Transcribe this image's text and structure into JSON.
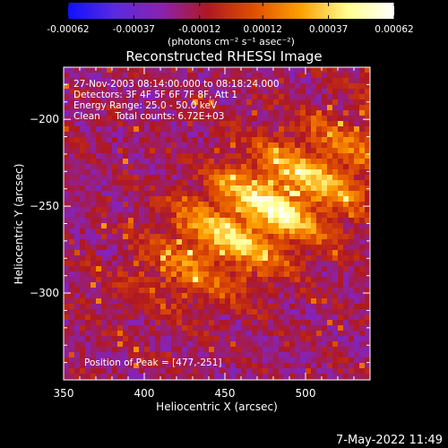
{
  "colorbar": {
    "tick_labels": [
      "-0.00062",
      "-0.00037",
      "-0.00012",
      "0.00012",
      "0.00037",
      "0.00062"
    ],
    "ticks": [
      -0.00062,
      -0.00037,
      -0.00012,
      0.00012,
      0.00037,
      0.00062
    ],
    "range": [
      -0.00062,
      0.00062
    ],
    "units_label": "(photons cm⁻² s⁻¹ asec⁻²)",
    "colormap": [
      "#1010ff",
      "#5a2ae0",
      "#8a22b0",
      "#b01820",
      "#e05000",
      "#ffa000",
      "#ffff90",
      "#ffffff"
    ]
  },
  "chart_data": {
    "type": "heatmap",
    "title": "Reconstructed RHESSI Image",
    "xlabel": "Heliocentric X (arcsec)",
    "ylabel": "Heliocentric Y (arcsec)",
    "xlim": [
      350,
      540
    ],
    "ylim": [
      -350,
      -170
    ],
    "xticks": [
      350,
      400,
      450,
      500
    ],
    "yticks": [
      -200,
      -250,
      -300
    ],
    "xtick_labels": [
      "350",
      "400",
      "450",
      "500"
    ],
    "ytick_labels": [
      "−200",
      "−250",
      "−300"
    ],
    "peak_position": [
      477,
      -251
    ],
    "info_lines": [
      "27-Nov-2003 08:14:00.000 to 08:18:24.000",
      "Detectors: 3F 4F 5F 6F 7F 8F, Att 1",
      "Energy Range: 25.0 - 50.0 keV",
      "Clean     Total counts: 6.72E+03"
    ],
    "peak_label": "Position of Peak = [477,-251]"
  },
  "footer": {
    "timestamp": "7-May-2022 11:49"
  }
}
